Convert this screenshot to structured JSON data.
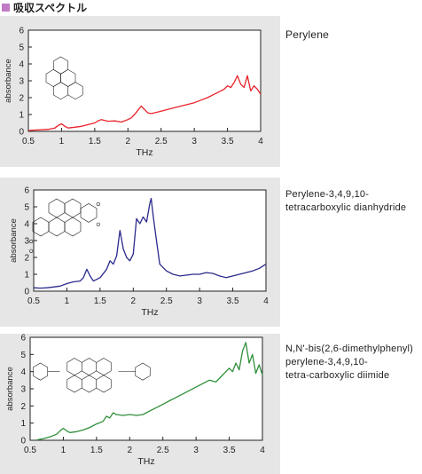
{
  "section_title": "吸収スペクトル",
  "colors": {
    "marker": "#c17bc4",
    "panel_bg": "#e6e6e6"
  },
  "compounds": [
    {
      "name_lines": [
        "Perylene"
      ]
    },
    {
      "name_lines": [
        "Perylene-3,4,9,10-",
        "tetracarboxylic dianhydride"
      ]
    },
    {
      "name_lines": [
        "N,N'-bis(2,6-dimethylphenyl)",
        "perylene-3,4,9,10-",
        "tetra-carboxylic diimide"
      ]
    }
  ],
  "chart_data": [
    {
      "type": "line",
      "xlabel": "THz",
      "ylabel": "absorbance",
      "xlim": [
        0.5,
        4
      ],
      "ylim": [
        0,
        6
      ],
      "xticks": [
        "0.5",
        "1",
        "1.5",
        "2",
        "2.5",
        "3",
        "3.5",
        "4"
      ],
      "yticks": [
        "0",
        "1",
        "2",
        "3",
        "4",
        "5",
        "6"
      ],
      "grid": false,
      "series": [
        {
          "color": "#e8232a",
          "x": [
            0.5,
            0.6,
            0.7,
            0.8,
            0.9,
            0.95,
            1.0,
            1.05,
            1.1,
            1.2,
            1.3,
            1.4,
            1.5,
            1.55,
            1.6,
            1.7,
            1.8,
            1.9,
            2.0,
            2.05,
            2.1,
            2.15,
            2.2,
            2.25,
            2.3,
            2.35,
            2.4,
            2.5,
            2.6,
            2.7,
            2.8,
            2.9,
            3.0,
            3.1,
            3.2,
            3.3,
            3.4,
            3.45,
            3.5,
            3.55,
            3.6,
            3.65,
            3.7,
            3.75,
            3.8,
            3.85,
            3.9,
            3.95,
            4.0
          ],
          "y": [
            0.05,
            0.08,
            0.1,
            0.12,
            0.2,
            0.35,
            0.45,
            0.3,
            0.2,
            0.25,
            0.3,
            0.4,
            0.5,
            0.62,
            0.7,
            0.6,
            0.62,
            0.55,
            0.7,
            0.8,
            1.0,
            1.25,
            1.5,
            1.3,
            1.1,
            1.05,
            1.1,
            1.2,
            1.3,
            1.4,
            1.5,
            1.6,
            1.7,
            1.85,
            2.0,
            2.2,
            2.4,
            2.5,
            2.7,
            2.6,
            2.9,
            3.3,
            2.8,
            2.6,
            3.3,
            2.4,
            2.7,
            2.5,
            2.2
          ]
        }
      ]
    },
    {
      "type": "line",
      "xlabel": "THz",
      "ylabel": "absorbance",
      "xlim": [
        0.5,
        4
      ],
      "ylim": [
        0,
        6
      ],
      "xticks": [
        "0.5",
        "1",
        "1.5",
        "2",
        "2.5",
        "3",
        "3.5",
        "4"
      ],
      "yticks": [
        "0",
        "1",
        "2",
        "3",
        "4",
        "5",
        "6"
      ],
      "grid": false,
      "series": [
        {
          "color": "#2a2a8c",
          "x": [
            0.5,
            0.6,
            0.7,
            0.8,
            0.9,
            1.0,
            1.1,
            1.2,
            1.25,
            1.3,
            1.35,
            1.4,
            1.5,
            1.6,
            1.65,
            1.7,
            1.75,
            1.8,
            1.85,
            1.9,
            1.95,
            2.0,
            2.05,
            2.1,
            2.15,
            2.2,
            2.25,
            2.27,
            2.3,
            2.35,
            2.4,
            2.5,
            2.6,
            2.7,
            2.8,
            2.9,
            3.0,
            3.1,
            3.2,
            3.3,
            3.4,
            3.5,
            3.6,
            3.7,
            3.8,
            3.9,
            4.0
          ],
          "y": [
            0.2,
            0.18,
            0.2,
            0.25,
            0.3,
            0.45,
            0.55,
            0.6,
            0.8,
            1.3,
            0.9,
            0.6,
            0.8,
            1.3,
            1.8,
            1.6,
            2.1,
            3.6,
            2.5,
            2.0,
            1.8,
            2.2,
            4.3,
            4.0,
            4.4,
            4.1,
            5.2,
            5.5,
            4.5,
            3.0,
            1.6,
            1.2,
            1.0,
            0.9,
            0.95,
            1.0,
            1.0,
            1.1,
            1.05,
            0.9,
            0.8,
            0.9,
            1.0,
            1.1,
            1.2,
            1.35,
            1.6
          ]
        }
      ]
    },
    {
      "type": "line",
      "xlabel": "THz",
      "ylabel": "absorbance",
      "xlim": [
        0.5,
        4
      ],
      "ylim": [
        0,
        6
      ],
      "xticks": [
        "0.5",
        "1",
        "1.5",
        "2",
        "2.5",
        "3",
        "3.5",
        "4"
      ],
      "yticks": [
        "0",
        "1",
        "2",
        "3",
        "4",
        "5",
        "6"
      ],
      "grid": false,
      "series": [
        {
          "color": "#2f8f3a",
          "x": [
            0.6,
            0.7,
            0.8,
            0.9,
            0.95,
            1.0,
            1.05,
            1.1,
            1.2,
            1.3,
            1.4,
            1.5,
            1.6,
            1.65,
            1.7,
            1.75,
            1.8,
            1.9,
            2.0,
            2.1,
            2.2,
            2.3,
            2.4,
            2.5,
            2.6,
            2.7,
            2.8,
            2.9,
            3.0,
            3.1,
            3.2,
            3.3,
            3.4,
            3.5,
            3.55,
            3.6,
            3.65,
            3.7,
            3.75,
            3.8,
            3.85,
            3.9,
            3.95,
            4.0
          ],
          "y": [
            0.02,
            0.1,
            0.2,
            0.35,
            0.55,
            0.7,
            0.55,
            0.45,
            0.5,
            0.6,
            0.75,
            0.95,
            1.1,
            1.4,
            1.3,
            1.6,
            1.5,
            1.45,
            1.5,
            1.45,
            1.5,
            1.7,
            1.9,
            2.1,
            2.3,
            2.5,
            2.7,
            2.9,
            3.1,
            3.3,
            3.5,
            3.4,
            3.8,
            4.2,
            4.0,
            4.5,
            4.1,
            5.2,
            5.7,
            4.5,
            5.0,
            3.9,
            4.4,
            3.8
          ]
        }
      ]
    }
  ]
}
